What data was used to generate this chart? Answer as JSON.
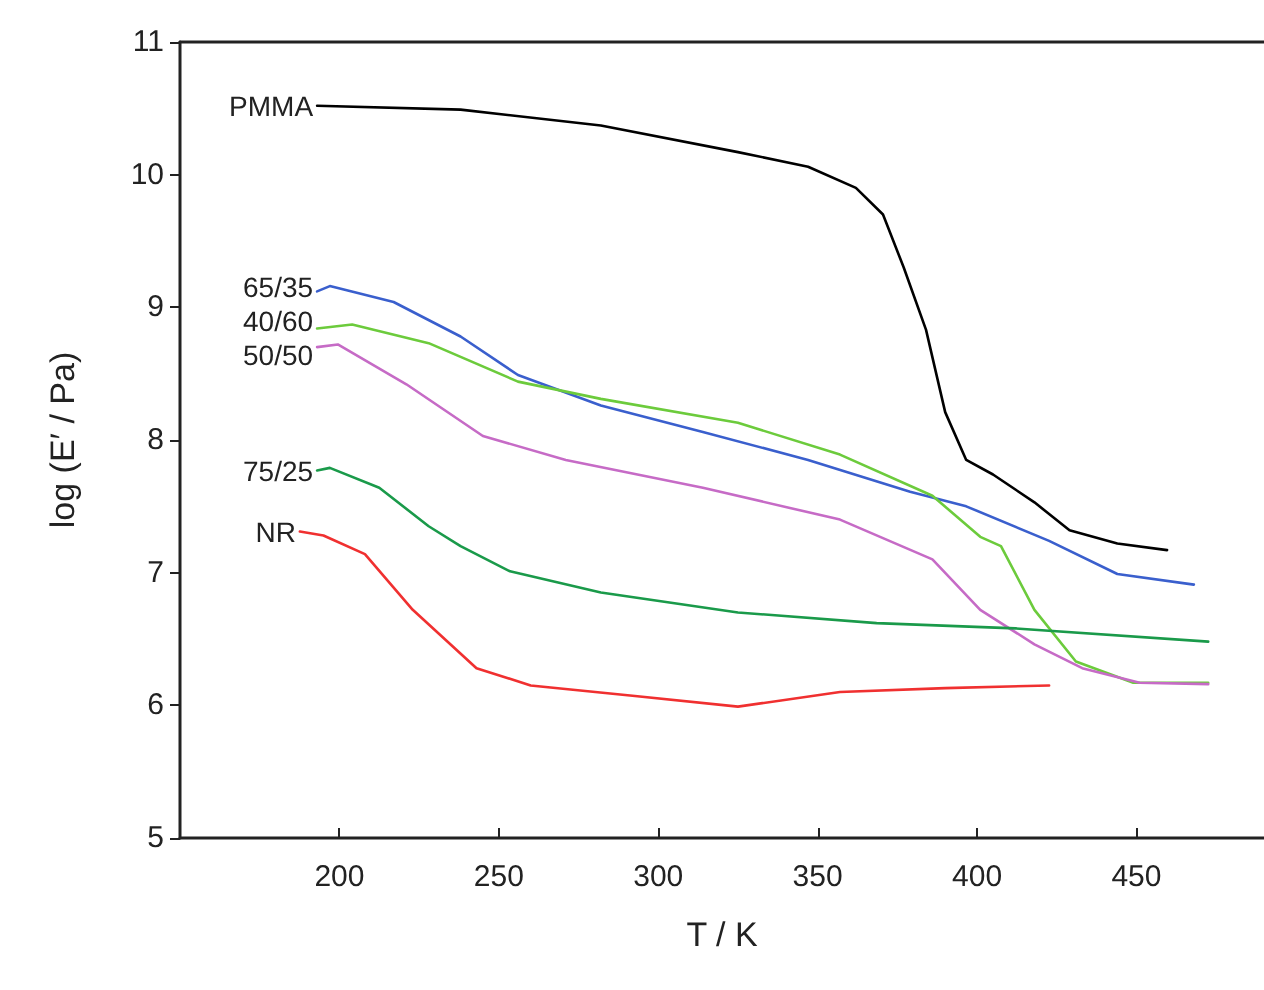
{
  "chart_data": {
    "type": "line",
    "xlabel": "T / K",
    "ylabel": "log (E′ / Pa)",
    "xlim": [
      150,
      490
    ],
    "xticks": [
      200,
      250,
      300,
      350,
      400,
      450
    ],
    "ylim": [
      5,
      11
    ],
    "yticks": [
      5,
      6,
      7,
      8,
      9,
      10,
      11
    ],
    "grid": false,
    "legend": false,
    "marker": "none",
    "line_style": "solid",
    "series": [
      {
        "name": "PMMA",
        "color": "#000000",
        "x": [
          193,
          238,
          282,
          325,
          347,
          362,
          370.5,
          377,
          384,
          390,
          396.6,
          405,
          418,
          429,
          444,
          459.6
        ],
        "values": [
          10.52,
          10.49,
          10.37,
          10.17,
          10.06,
          9.9,
          9.7,
          9.3,
          8.83,
          8.21,
          7.85,
          7.74,
          7.53,
          7.32,
          7.22,
          7.17
        ]
      },
      {
        "name": "65/35",
        "color": "#3a5fcd",
        "x": [
          193,
          197,
          217,
          238,
          256,
          282,
          314,
          347,
          379,
          396.6,
          422.6,
          444,
          468
        ],
        "values": [
          9.12,
          9.16,
          9.04,
          8.78,
          8.49,
          8.26,
          8.06,
          7.85,
          7.61,
          7.5,
          7.24,
          6.99,
          6.91
        ]
      },
      {
        "name": "40/60",
        "color": "#6ccb3c",
        "x": [
          193,
          204,
          228,
          256,
          282,
          325,
          357,
          386,
          401,
          407.5,
          418,
          431,
          449,
          472.5
        ],
        "values": [
          8.84,
          8.87,
          8.73,
          8.44,
          8.31,
          8.13,
          7.89,
          7.58,
          7.27,
          7.2,
          6.72,
          6.33,
          6.17,
          6.17
        ]
      },
      {
        "name": "50/50",
        "color": "#c66bc6",
        "x": [
          193,
          199.5,
          221,
          245,
          271,
          314,
          357,
          386,
          401,
          418,
          433,
          451,
          472.5
        ],
        "values": [
          8.7,
          8.72,
          8.42,
          8.03,
          7.85,
          7.64,
          7.4,
          7.1,
          6.72,
          6.46,
          6.28,
          6.17,
          6.16
        ]
      },
      {
        "name": "75/25",
        "color": "#1a9a4a",
        "x": [
          193,
          197,
          212.5,
          228,
          238,
          253.5,
          282,
          325,
          368.5,
          412,
          472.5
        ],
        "values": [
          7.77,
          7.79,
          7.64,
          7.35,
          7.2,
          7.01,
          6.85,
          6.7,
          6.62,
          6.58,
          6.48
        ]
      },
      {
        "name": "NR",
        "color": "#f03030",
        "x": [
          187.6,
          195,
          208,
          223,
          243,
          260,
          292.7,
          325,
          357,
          390,
          422.6
        ],
        "values": [
          7.31,
          7.28,
          7.14,
          6.72,
          6.28,
          6.15,
          6.07,
          5.99,
          6.1,
          6.13,
          6.15
        ]
      }
    ]
  }
}
